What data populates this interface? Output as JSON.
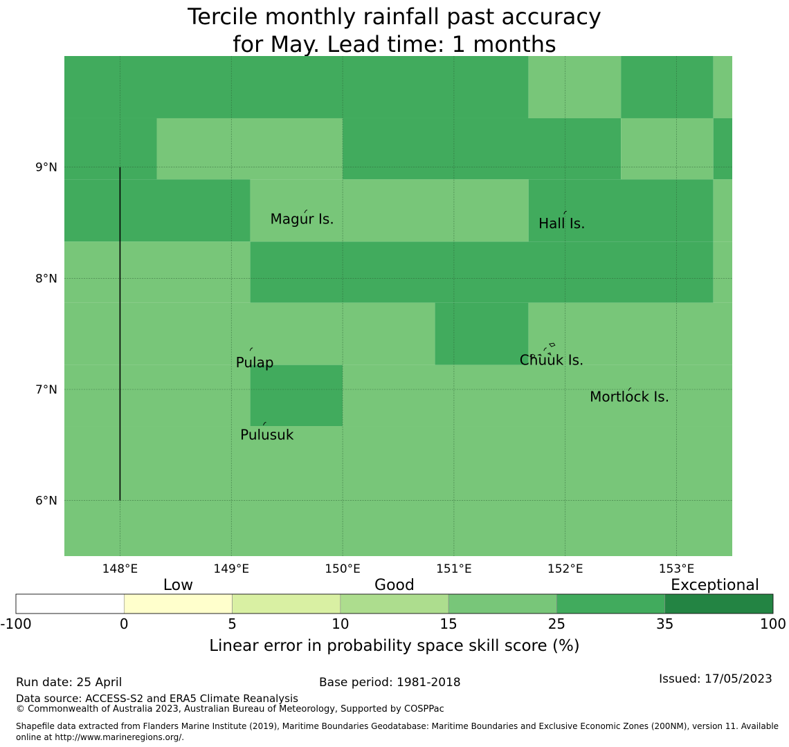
{
  "title": {
    "line1": "Tercile monthly rainfall past accuracy",
    "line2": "for May. Lead time: 1 months"
  },
  "map": {
    "lon_range": [
      147.5,
      153.5
    ],
    "lat_range": [
      5.5,
      10.0
    ],
    "lon_ticks": [
      {
        "value": 148,
        "label": "148°E"
      },
      {
        "value": 149,
        "label": "149°E"
      },
      {
        "value": 150,
        "label": "150°E"
      },
      {
        "value": 151,
        "label": "151°E"
      },
      {
        "value": 152,
        "label": "152°E"
      },
      {
        "value": 153,
        "label": "153°E"
      }
    ],
    "lat_ticks": [
      {
        "value": 9,
        "label": "9°N"
      },
      {
        "value": 8,
        "label": "8°N"
      },
      {
        "value": 7,
        "label": "7°N"
      },
      {
        "value": 6,
        "label": "6°N"
      }
    ],
    "grid": true,
    "colors": {
      "class_15_25": "#78c679",
      "class_25_35": "#41ab5d",
      "gridline": "#2b5e33",
      "boundary": "#000000"
    },
    "cell_classes": [
      "25-35",
      "15-25"
    ],
    "skill_cells": [
      {
        "lon0": 147.5,
        "lon1": 151.67,
        "lat0": 9.44,
        "lat1": 10.0,
        "class": "25-35"
      },
      {
        "lon0": 151.67,
        "lon1": 152.5,
        "lat0": 9.44,
        "lat1": 10.0,
        "class": "15-25"
      },
      {
        "lon0": 152.5,
        "lon1": 153.33,
        "lat0": 9.44,
        "lat1": 10.0,
        "class": "25-35"
      },
      {
        "lon0": 153.33,
        "lon1": 153.5,
        "lat0": 9.44,
        "lat1": 10.0,
        "class": "15-25"
      },
      {
        "lon0": 147.5,
        "lon1": 148.33,
        "lat0": 8.89,
        "lat1": 9.44,
        "class": "25-35"
      },
      {
        "lon0": 148.33,
        "lon1": 150.0,
        "lat0": 8.89,
        "lat1": 9.44,
        "class": "15-25"
      },
      {
        "lon0": 150.0,
        "lon1": 152.5,
        "lat0": 8.89,
        "lat1": 9.44,
        "class": "25-35"
      },
      {
        "lon0": 152.5,
        "lon1": 153.33,
        "lat0": 8.89,
        "lat1": 9.44,
        "class": "15-25"
      },
      {
        "lon0": 153.33,
        "lon1": 153.5,
        "lat0": 8.89,
        "lat1": 9.44,
        "class": "25-35"
      },
      {
        "lon0": 147.5,
        "lon1": 149.17,
        "lat0": 8.33,
        "lat1": 8.89,
        "class": "25-35"
      },
      {
        "lon0": 149.17,
        "lon1": 151.67,
        "lat0": 8.33,
        "lat1": 8.89,
        "class": "15-25"
      },
      {
        "lon0": 151.67,
        "lon1": 153.33,
        "lat0": 8.33,
        "lat1": 8.89,
        "class": "25-35"
      },
      {
        "lon0": 153.33,
        "lon1": 153.5,
        "lat0": 8.33,
        "lat1": 8.89,
        "class": "15-25"
      },
      {
        "lon0": 147.5,
        "lon1": 149.17,
        "lat0": 7.78,
        "lat1": 8.33,
        "class": "15-25"
      },
      {
        "lon0": 149.17,
        "lon1": 153.33,
        "lat0": 7.78,
        "lat1": 8.33,
        "class": "25-35"
      },
      {
        "lon0": 153.33,
        "lon1": 153.5,
        "lat0": 7.78,
        "lat1": 8.33,
        "class": "15-25"
      },
      {
        "lon0": 147.5,
        "lon1": 150.83,
        "lat0": 7.22,
        "lat1": 7.78,
        "class": "15-25"
      },
      {
        "lon0": 150.83,
        "lon1": 151.67,
        "lat0": 7.22,
        "lat1": 7.78,
        "class": "25-35"
      },
      {
        "lon0": 151.67,
        "lon1": 153.5,
        "lat0": 7.22,
        "lat1": 7.78,
        "class": "15-25"
      },
      {
        "lon0": 147.5,
        "lon1": 149.17,
        "lat0": 6.67,
        "lat1": 7.22,
        "class": "15-25"
      },
      {
        "lon0": 149.17,
        "lon1": 150.0,
        "lat0": 6.67,
        "lat1": 7.22,
        "class": "25-35"
      },
      {
        "lon0": 150.0,
        "lon1": 153.5,
        "lat0": 6.67,
        "lat1": 7.22,
        "class": "15-25"
      },
      {
        "lon0": 147.5,
        "lon1": 153.5,
        "lat0": 5.5,
        "lat1": 6.67,
        "class": "15-25"
      }
    ],
    "boundary_line": {
      "lon": 148.0,
      "lat_from": 6.0,
      "lat_to": 9.0
    },
    "places": [
      {
        "name": "Magur Is.",
        "lon": 149.35,
        "lat": 8.49,
        "mark_lon": 149.67,
        "mark_lat": 8.6
      },
      {
        "name": "Hall Is.",
        "lon": 151.76,
        "lat": 8.45,
        "mark_lon": 152.0,
        "mark_lat": 8.59
      },
      {
        "name": "Pulap",
        "lon": 149.04,
        "lat": 7.2,
        "mark_lon": 149.18,
        "mark_lat": 7.36
      },
      {
        "name": "Chuuk Is.",
        "lon": 151.59,
        "lat": 7.22,
        "mark_lon": 151.82,
        "mark_lat": 7.36
      },
      {
        "name": "Mortlock Is.",
        "lon": 152.22,
        "lat": 6.89,
        "mark_lon": 152.58,
        "mark_lat": 7.0
      },
      {
        "name": "Pulusuk",
        "lon": 149.08,
        "lat": 6.55,
        "mark_lon": 149.3,
        "mark_lat": 6.69
      }
    ]
  },
  "colorbar": {
    "boundaries": [
      "-100",
      "0",
      "5",
      "10",
      "15",
      "25",
      "35",
      "100"
    ],
    "colors": [
      "#ffffff",
      "#ffffcc",
      "#d9f0a3",
      "#addd8e",
      "#78c679",
      "#41ab5d",
      "#238443"
    ],
    "categories": {
      "low": "Low",
      "good": "Good",
      "exceptional": "Exceptional"
    },
    "label": "Linear error in probability space skill score (%)"
  },
  "footer": {
    "run_date": "Run date: 25 April",
    "base_period": "Base period: 1981-2018",
    "issued": "Issued: 17/05/2023",
    "data_source": "Data source: ACCESS-S2 and ERA5 Climate Reanalysis",
    "copyright": "© Commonwealth of Australia 2023, Australian Bureau of Meteorology, Supported by COSPPac",
    "shapefile": "Shapefile data extracted from Flanders Marine Institute (2019), Maritime Boundaries Geodatabase: Maritime Boundaries and Exclusive Economic Zones (200NM), version 11. Available online at http://www.marineregions.org/."
  }
}
